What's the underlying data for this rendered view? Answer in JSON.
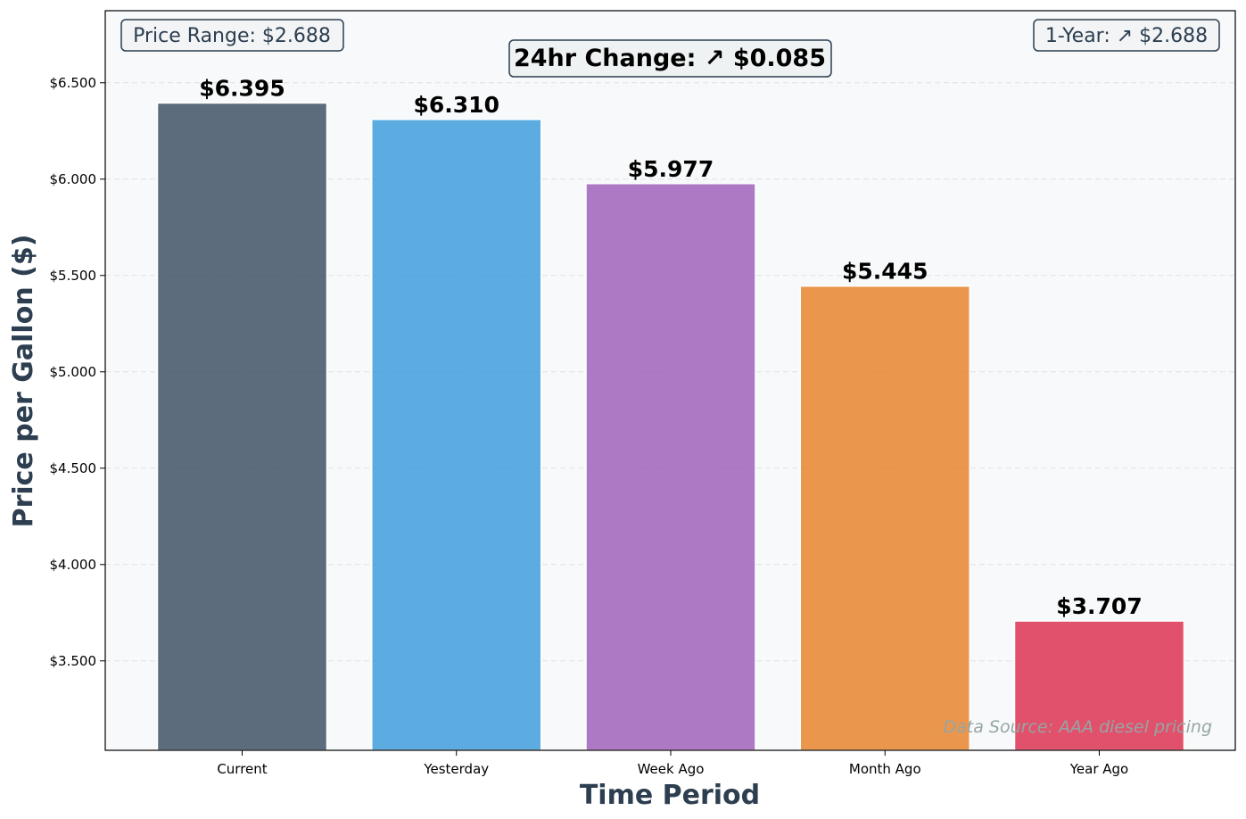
{
  "chart_data": {
    "type": "bar",
    "categories": [
      "Current",
      "Yesterday",
      "Week Ago",
      "Month Ago",
      "Year Ago"
    ],
    "values": [
      6.395,
      6.31,
      5.977,
      5.445,
      3.707
    ],
    "value_labels": [
      "$6.395",
      "$6.310",
      "$5.977",
      "$5.445",
      "$3.707"
    ],
    "colors": [
      "#34495e",
      "#3498db",
      "#9b59b6",
      "#e67e22",
      "#dc2747"
    ],
    "xlabel": "Time Period",
    "ylabel": "Price per Gallon ($)",
    "ylim": [
      3.036,
      6.874
    ],
    "yticks": [
      3.5,
      4.0,
      4.5,
      5.0,
      5.5,
      6.0,
      6.5
    ],
    "ytick_labels": [
      "$3.500",
      "$4.000",
      "$4.500",
      "$5.000",
      "$5.500",
      "$6.000",
      "$6.500"
    ],
    "grid": true,
    "annotations": {
      "price_range": "Price Range: $2.688",
      "one_year": "1-Year: ↗ $2.688",
      "change_24hr": "24hr Change: ↗ $0.085",
      "source": "Data Source: AAA diesel pricing"
    }
  }
}
